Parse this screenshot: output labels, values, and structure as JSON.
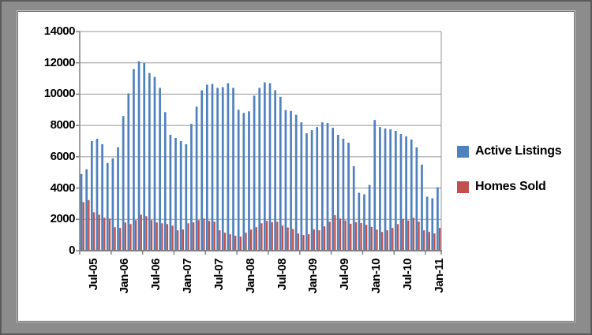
{
  "chart_data": {
    "type": "bar",
    "title": "",
    "grid": true,
    "legend_position": "right",
    "ylim": [
      0,
      14000
    ],
    "ytick_step": 2000,
    "y_ticks": [
      "0",
      "2000",
      "4000",
      "6000",
      "8000",
      "10000",
      "12000",
      "14000"
    ],
    "x_tick_labels": [
      "Jul-05",
      "Jan-06",
      "Jul-06",
      "Jan-07",
      "Jul-07",
      "Jan-08",
      "Jul-08",
      "Jan-09",
      "Jul-09",
      "Jan-10",
      "Jul-10",
      "Jan-11"
    ],
    "x_label_interval": 6,
    "categories": [
      "Jul-05",
      "Aug-05",
      "Sep-05",
      "Oct-05",
      "Nov-05",
      "Dec-05",
      "Jan-06",
      "Feb-06",
      "Mar-06",
      "Apr-06",
      "May-06",
      "Jun-06",
      "Jul-06",
      "Aug-06",
      "Sep-06",
      "Oct-06",
      "Nov-06",
      "Dec-06",
      "Jan-07",
      "Feb-07",
      "Mar-07",
      "Apr-07",
      "May-07",
      "Jun-07",
      "Jul-07",
      "Aug-07",
      "Sep-07",
      "Oct-07",
      "Nov-07",
      "Dec-07",
      "Jan-08",
      "Feb-08",
      "Mar-08",
      "Apr-08",
      "May-08",
      "Jun-08",
      "Jul-08",
      "Aug-08",
      "Sep-08",
      "Oct-08",
      "Nov-08",
      "Dec-08",
      "Jan-09",
      "Feb-09",
      "Mar-09",
      "Apr-09",
      "May-09",
      "Jun-09",
      "Jul-09",
      "Aug-09",
      "Sep-09",
      "Oct-09",
      "Nov-09",
      "Dec-09",
      "Jan-10",
      "Feb-10",
      "Mar-10",
      "Apr-10",
      "May-10",
      "Jun-10",
      "Jul-10",
      "Aug-10",
      "Sep-10",
      "Oct-10",
      "Nov-10",
      "Dec-10",
      "Jan-11",
      "Feb-11",
      "Mar-11"
    ],
    "series": [
      {
        "name": "Active Listings",
        "color": "#4f81bd",
        "values": [
          4900,
          5200,
          7000,
          7150,
          6800,
          5600,
          5900,
          6600,
          8600,
          10050,
          11600,
          12100,
          12000,
          11350,
          11100,
          10400,
          8850,
          7400,
          7200,
          7000,
          6800,
          8100,
          9200,
          10250,
          10600,
          10650,
          10400,
          10450,
          10700,
          10400,
          9000,
          8800,
          8900,
          9900,
          10400,
          10750,
          10700,
          10250,
          9830,
          8980,
          8930,
          8680,
          8200,
          7500,
          7700,
          7900,
          8200,
          8150,
          7850,
          7400,
          7150,
          6900,
          5400,
          3700,
          3600,
          4200,
          8350,
          7900,
          7800,
          7750,
          7650,
          7450,
          7300,
          7100,
          6600,
          5500,
          3450,
          3350,
          4050
        ]
      },
      {
        "name": "Homes Sold",
        "color": "#c0504d",
        "values": [
          3100,
          3230,
          2450,
          2300,
          2100,
          2050,
          1500,
          1450,
          1800,
          1700,
          1950,
          2300,
          2200,
          1950,
          1800,
          1750,
          1700,
          1600,
          1300,
          1350,
          1750,
          1800,
          1950,
          2050,
          1900,
          1850,
          1300,
          1150,
          1050,
          950,
          900,
          1150,
          1350,
          1500,
          1750,
          1900,
          1820,
          1850,
          1600,
          1480,
          1380,
          1100,
          1000,
          1050,
          1350,
          1300,
          1550,
          1850,
          2270,
          2050,
          1930,
          1720,
          1820,
          1770,
          1650,
          1520,
          1350,
          1200,
          1300,
          1450,
          1700,
          2020,
          1930,
          2100,
          1850,
          1300,
          1200,
          1100,
          1450
        ]
      }
    ],
    "colors": {
      "gridline": "#969696",
      "axis": "#7f7f7f",
      "frame_background": "#8c8c8c",
      "plot_background": "#ffffff"
    }
  }
}
